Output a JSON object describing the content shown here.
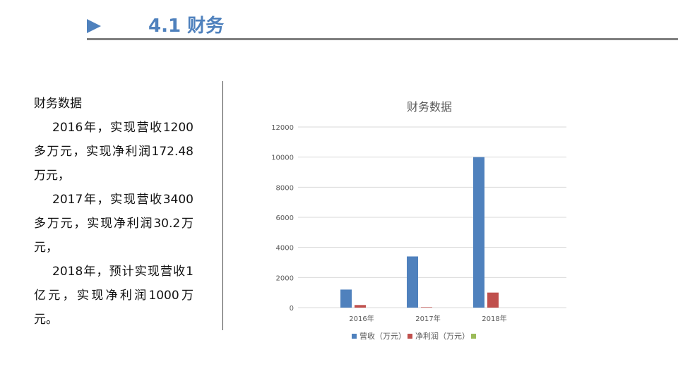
{
  "slide": {
    "title": "4.1 财务"
  },
  "content": {
    "heading": "财务数据",
    "paragraphs": [
      "2016年，实现营收1200多万元，实现净利润172.48万元，",
      "2017年，实现营收3400多万元，实现净利润30.2万元，",
      "2018年，预计实现营收1亿元，实现净利润1000万元。"
    ]
  },
  "chart_data": {
    "type": "bar",
    "title": "财务数据",
    "categories": [
      "2016年",
      "2017年",
      "2018年"
    ],
    "series": [
      {
        "name": "营收（万元）",
        "values": [
          1200,
          3400,
          10000
        ],
        "color": "#4f81bd"
      },
      {
        "name": "净利润（万元）",
        "values": [
          172.48,
          30.2,
          1000
        ],
        "color": "#c0504d"
      },
      {
        "name": "",
        "values": [
          0,
          0,
          0
        ],
        "color": "#9bbb59"
      }
    ],
    "yticks": [
      "0",
      "2000",
      "4000",
      "6000",
      "8000",
      "10000",
      "12000"
    ],
    "ylim": [
      0,
      12000
    ],
    "grid": true,
    "legend": "bottom"
  }
}
